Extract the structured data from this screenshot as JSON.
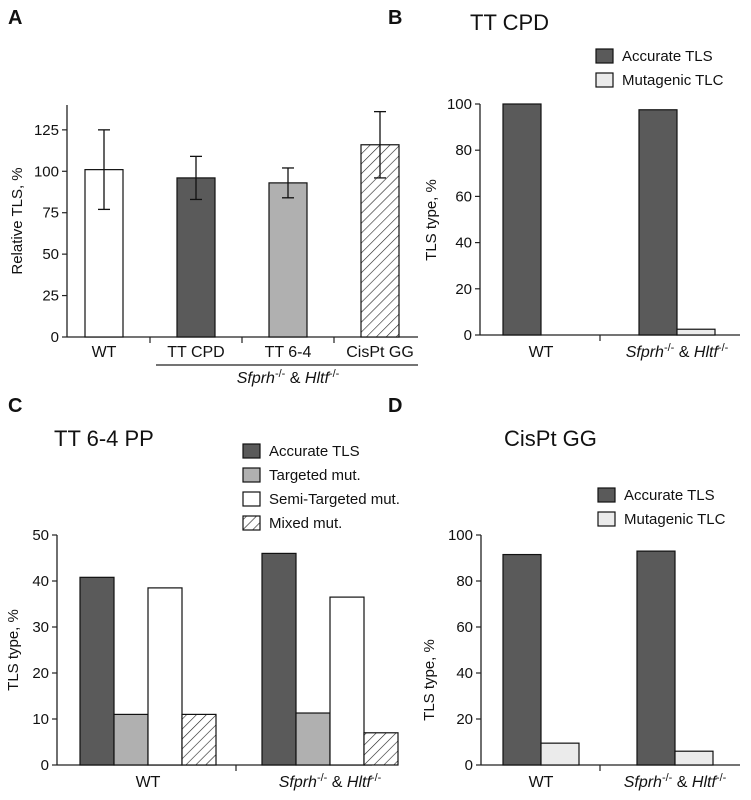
{
  "chart_data": [
    {
      "panel": "A",
      "type": "bar",
      "title": "",
      "ylabel": "Relative TLS, %",
      "ylim": [
        0,
        140
      ],
      "yticks": [
        0,
        25,
        50,
        75,
        100,
        125
      ],
      "categories": [
        "WT",
        "TT CPD",
        "TT 6-4",
        "CisPt GG"
      ],
      "values": [
        101,
        96,
        93,
        116
      ],
      "errors": [
        24,
        13,
        9,
        20
      ],
      "fills": [
        "white",
        "#5a5a5a",
        "#b0b0b0",
        "hatch"
      ],
      "group_label": "Sfprh-/- & Hltf-/-"
    },
    {
      "panel": "B",
      "type": "bar",
      "title": "TT CPD",
      "ylabel": "TLS type, %",
      "ylim": [
        0,
        100
      ],
      "yticks": [
        0,
        20,
        40,
        60,
        80,
        100
      ],
      "categories": [
        "WT",
        "Sfprh-/- & Hltf-/-"
      ],
      "series": [
        {
          "name": "Accurate TLS",
          "values": [
            100,
            97.5
          ],
          "fill": "#5a5a5a"
        },
        {
          "name": "Mutagenic TLC",
          "values": [
            0,
            2.5
          ],
          "fill": "#ebebeb"
        }
      ],
      "legend": "top-right"
    },
    {
      "panel": "C",
      "type": "bar",
      "title": "TT 6-4 PP",
      "ylabel": "TLS type, %",
      "ylim": [
        0,
        50
      ],
      "yticks": [
        0,
        10,
        20,
        30,
        40,
        50
      ],
      "categories": [
        "WT",
        "Sfprh-/- & Hltf-/-"
      ],
      "series": [
        {
          "name": "Accurate TLS",
          "values": [
            40.8,
            46
          ],
          "fill": "#5a5a5a"
        },
        {
          "name": "Targeted mut.",
          "values": [
            11,
            11.3
          ],
          "fill": "#b0b0b0"
        },
        {
          "name": "Semi-Targeted mut.",
          "values": [
            38.5,
            36.5
          ],
          "fill": "white"
        },
        {
          "name": "Mixed mut.",
          "values": [
            11,
            7
          ],
          "fill": "hatch"
        }
      ],
      "legend": "top-right"
    },
    {
      "panel": "D",
      "type": "bar",
      "title": "CisPt GG",
      "ylabel": "TLS type, %",
      "ylim": [
        0,
        100
      ],
      "yticks": [
        0,
        20,
        40,
        60,
        80,
        100
      ],
      "categories": [
        "WT",
        "Sfprh-/- & Hltf-/-"
      ],
      "series": [
        {
          "name": "Accurate TLS",
          "values": [
            91.5,
            93
          ],
          "fill": "#5a5a5a"
        },
        {
          "name": "Mutagenic TLC",
          "values": [
            9.5,
            6
          ],
          "fill": "#ebebeb"
        }
      ],
      "legend": "top-right"
    }
  ]
}
